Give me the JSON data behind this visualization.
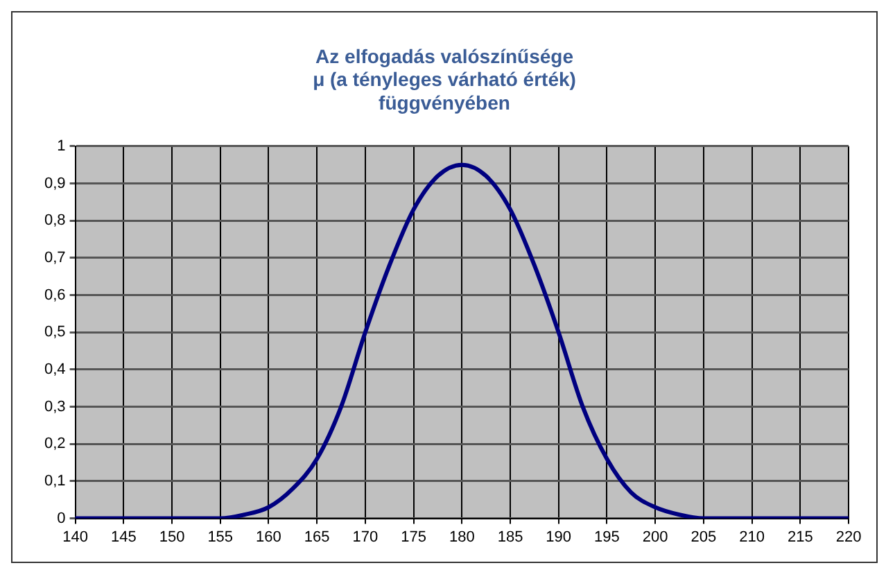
{
  "chart_data": {
    "type": "line",
    "title": "Az elfogadás valószínűsége\nμ (a tényleges várható érték)\nfüggvényében",
    "x": [
      140,
      145,
      150,
      155,
      157.5,
      160,
      162.5,
      165,
      167.5,
      170,
      172.5,
      175,
      177.5,
      180,
      182.5,
      185,
      187.5,
      190,
      192.5,
      195,
      197.5,
      200,
      202.5,
      205,
      210,
      215,
      220
    ],
    "series": [
      {
        "color": "#000080",
        "values": [
          0,
          0,
          0,
          0,
          0.01,
          0.03,
          0.08,
          0.16,
          0.3,
          0.5,
          0.68,
          0.83,
          0.92,
          0.95,
          0.92,
          0.83,
          0.68,
          0.5,
          0.3,
          0.16,
          0.07,
          0.03,
          0.01,
          0,
          0,
          0,
          0
        ]
      }
    ],
    "xlim": [
      140,
      220
    ],
    "xticks": [
      140,
      145,
      150,
      155,
      160,
      165,
      170,
      175,
      180,
      185,
      190,
      195,
      200,
      205,
      210,
      215,
      220
    ],
    "ylim": [
      0,
      1
    ],
    "yticks": [
      0,
      {
        "value": 0.1,
        "label": "0,1"
      },
      {
        "value": 0.2,
        "label": "0,2"
      },
      {
        "value": 0.3,
        "label": "0,3"
      },
      {
        "value": 0.4,
        "label": "0,4"
      },
      {
        "value": 0.5,
        "label": "0,5"
      },
      {
        "value": 0.6,
        "label": "0,6"
      },
      {
        "value": 0.7,
        "label": "0,7"
      },
      {
        "value": 0.8,
        "label": "0,8"
      },
      {
        "value": 0.9,
        "label": "0,9"
      },
      1
    ],
    "grid": true,
    "legend": false,
    "marker": "none",
    "line_style": "solid"
  }
}
